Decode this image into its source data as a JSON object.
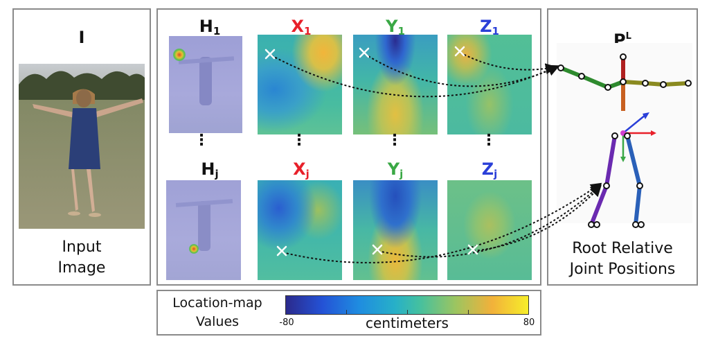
{
  "left_panel": {
    "title": "I",
    "caption_line1": "Input",
    "caption_line2": "Image"
  },
  "middle_panel": {
    "row1": {
      "h": "H",
      "h_sub": "1",
      "x": "X",
      "x_sub": "1",
      "y": "Y",
      "y_sub": "1",
      "z": "Z",
      "z_sub": "1"
    },
    "rowj": {
      "h": "H",
      "h_sub": "j",
      "x": "X",
      "x_sub": "j",
      "y": "Y",
      "y_sub": "j",
      "z": "Z",
      "z_sub": "j"
    },
    "ellipsis": "⋮"
  },
  "right_panel": {
    "title": "P",
    "title_sup": "L",
    "caption_line1": "Root Relative",
    "caption_line2": "Joint Positions"
  },
  "colorbar": {
    "label_line1": "Location-map",
    "label_line2": "Values",
    "min": "-80",
    "max": "80",
    "unit": "centimeters"
  },
  "colors": {
    "x_label": "#e8202a",
    "y_label": "#3aa845",
    "z_label": "#2a3fd8"
  }
}
